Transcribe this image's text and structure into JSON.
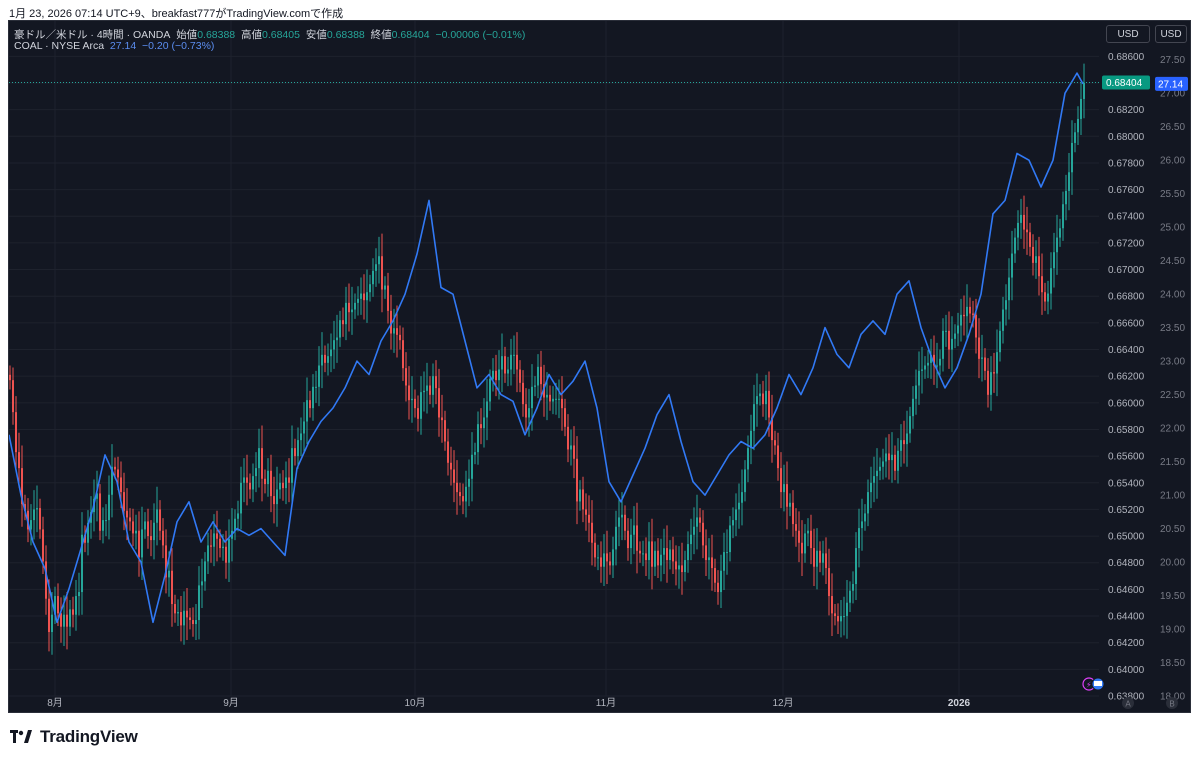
{
  "header": {
    "caption": "1月 23, 2026 07:14 UTC+9、breakfast777がTradingView.comで作成"
  },
  "legend": {
    "main": {
      "symbol": "豪ドル／米ドル · 4時間 · OANDA",
      "open_label": "始値",
      "open": "0.68388",
      "high_label": "高値",
      "high": "0.68405",
      "low_label": "安値",
      "low": "0.68388",
      "close_label": "終値",
      "close": "0.68404",
      "change": "−0.00006 (−0.01%)"
    },
    "compare": {
      "symbol": "COAL · NYSE Arca",
      "last": "27.14",
      "change": "−0.20 (−0.73%)"
    }
  },
  "scales": {
    "left_currency": "USD",
    "right_currency": "USD",
    "label_a": "A",
    "label_b": "B"
  },
  "footer": {
    "brand": "TradingView"
  },
  "colors": {
    "up": "#26a69a",
    "down": "#ef5350",
    "compare": "#3179f5",
    "bg": "#131722",
    "grid": "#1e222d",
    "axis_text": "#b2b5be"
  },
  "chart_data": {
    "type": "line",
    "x_axis": {
      "ticks": [
        "8月",
        "9月",
        "10月",
        "11月",
        "12月",
        "2026"
      ],
      "bold": [
        "2026"
      ]
    },
    "y_axis_left": {
      "ticks": [
        "0.68600",
        "0.68400",
        "0.68200",
        "0.68000",
        "0.67800",
        "0.67600",
        "0.67400",
        "0.67200",
        "0.67000",
        "0.66800",
        "0.66600",
        "0.66400",
        "0.66200",
        "0.66000",
        "0.65800",
        "0.65600",
        "0.65400",
        "0.65200",
        "0.65000",
        "0.64800",
        "0.64600",
        "0.64400",
        "0.64200",
        "0.64000",
        "0.63800"
      ],
      "range": [
        0.638,
        0.687
      ]
    },
    "y_axis_right": {
      "ticks": [
        "27.50",
        "27.00",
        "26.50",
        "26.00",
        "25.50",
        "25.00",
        "24.50",
        "24.00",
        "23.50",
        "23.00",
        "22.50",
        "22.00",
        "21.50",
        "21.00",
        "20.50",
        "20.00",
        "19.50",
        "19.00",
        "18.50",
        "18.00"
      ],
      "range": [
        18.0,
        27.75
      ]
    },
    "last_labels": {
      "main": "0.68404",
      "compare": "27.14"
    },
    "series": [
      {
        "name": "豪ドル／米ドル",
        "kind": "candlestick",
        "scale": "left",
        "x": [
          0,
          3,
          6,
          9,
          12,
          15,
          18,
          21,
          24,
          27,
          30,
          33,
          36,
          39,
          42,
          45,
          48,
          51,
          54,
          57,
          60,
          63,
          66,
          69,
          72,
          75,
          78,
          81,
          84,
          87,
          90,
          93,
          96,
          99,
          102,
          105,
          108,
          111,
          114,
          117,
          120,
          123,
          126,
          129,
          132,
          135,
          138,
          141,
          144,
          147,
          150,
          153,
          156,
          159,
          162,
          165,
          168,
          171,
          174,
          177,
          180,
          183,
          186,
          189,
          192,
          195,
          198,
          201,
          204,
          207,
          210,
          213,
          216,
          219,
          222,
          225,
          228,
          231,
          234,
          237,
          240,
          243,
          246,
          249,
          252,
          255,
          258,
          261,
          264,
          267,
          270,
          273,
          276,
          279,
          282,
          285,
          288,
          291,
          294,
          297,
          300,
          303,
          306,
          309,
          312,
          315,
          318,
          321,
          324,
          327,
          330,
          333,
          336,
          339,
          342,
          345,
          348,
          351,
          354,
          357,
          360,
          363,
          366,
          369,
          372,
          375,
          378,
          381,
          384,
          387,
          390,
          393,
          396,
          399,
          402,
          405,
          408,
          411,
          414,
          417,
          420,
          423,
          426,
          429,
          432,
          435,
          438,
          441,
          444,
          447,
          450,
          453,
          456,
          459,
          462,
          465,
          468,
          471,
          474,
          477,
          480,
          483,
          486,
          489,
          492,
          495,
          498,
          501,
          504,
          507,
          510,
          513,
          516,
          519,
          522,
          525,
          528,
          531,
          534,
          537,
          540,
          543,
          546,
          549,
          552,
          555,
          558,
          561,
          564,
          567,
          570,
          573,
          576,
          579,
          582,
          585,
          588,
          591,
          594,
          597,
          600,
          603,
          606,
          609,
          612,
          615,
          618,
          621,
          624,
          627,
          630,
          633,
          636,
          639,
          642,
          645,
          648,
          651,
          654,
          657,
          660,
          663,
          666,
          669,
          672,
          675,
          678,
          681,
          684,
          687,
          690,
          693,
          696,
          699,
          702,
          705,
          708,
          711,
          714,
          717,
          720,
          723,
          726,
          729,
          732,
          735,
          738,
          741,
          744,
          747,
          750,
          753,
          756,
          759,
          762,
          765,
          768,
          771,
          774,
          777,
          780,
          783,
          786,
          789,
          792,
          795,
          798,
          801,
          804,
          807,
          810,
          813,
          816,
          819,
          822,
          825,
          828,
          831,
          834,
          837,
          840,
          843,
          846,
          849,
          852,
          855,
          858,
          861,
          864,
          867,
          870,
          873,
          876,
          879,
          882,
          885,
          888,
          891,
          894,
          897,
          900,
          903,
          906,
          909,
          912,
          915,
          918,
          921,
          924,
          927,
          930,
          933,
          936,
          939,
          942,
          945,
          948,
          951,
          954,
          957,
          960,
          963,
          966,
          969,
          972,
          975,
          978,
          981,
          984,
          987,
          990,
          993,
          996,
          999,
          1002,
          1005,
          1008,
          1011,
          1014,
          1017,
          1020,
          1023,
          1026,
          1029,
          1032,
          1035,
          1038,
          1041,
          1044,
          1047,
          1050,
          1053,
          1056,
          1059,
          1062,
          1065,
          1068,
          1071,
          1074
        ],
        "close": [
          0.6617,
          0.6593,
          0.6563,
          0.6551,
          0.6524,
          0.6519,
          0.6505,
          0.6512,
          0.652,
          0.6521,
          0.6505,
          0.6481,
          0.6453,
          0.6428,
          0.6441,
          0.6455,
          0.6442,
          0.6432,
          0.6441,
          0.6432,
          0.6445,
          0.6441,
          0.6455,
          0.6458,
          0.6501,
          0.6495,
          0.651,
          0.6518,
          0.6528,
          0.6532,
          0.6504,
          0.6512,
          0.6512,
          0.6531,
          0.6552,
          0.655,
          0.6544,
          0.6533,
          0.6519,
          0.6514,
          0.6511,
          0.6502,
          0.6504,
          0.6484,
          0.6505,
          0.6511,
          0.65,
          0.6497,
          0.651,
          0.652,
          0.6504,
          0.6493,
          0.6469,
          0.6474,
          0.6449,
          0.6442,
          0.6443,
          0.6433,
          0.6444,
          0.6439,
          0.6437,
          0.6434,
          0.6437,
          0.6463,
          0.6466,
          0.6481,
          0.6493,
          0.6492,
          0.6502,
          0.6498,
          0.6491,
          0.6492,
          0.648,
          0.6498,
          0.6504,
          0.6513,
          0.6517,
          0.654,
          0.6544,
          0.654,
          0.6535,
          0.6545,
          0.6551,
          0.6566,
          0.6543,
          0.6539,
          0.6549,
          0.653,
          0.6524,
          0.6535,
          0.654,
          0.6536,
          0.6544,
          0.654,
          0.6566,
          0.656,
          0.6572,
          0.6577,
          0.6586,
          0.6602,
          0.6596,
          0.6612,
          0.6612,
          0.6628,
          0.6636,
          0.663,
          0.6635,
          0.664,
          0.6647,
          0.6649,
          0.6662,
          0.6659,
          0.6675,
          0.6668,
          0.667,
          0.6675,
          0.6678,
          0.6682,
          0.6677,
          0.6683,
          0.6689,
          0.6699,
          0.6704,
          0.671,
          0.6685,
          0.6688,
          0.6669,
          0.6652,
          0.6656,
          0.6651,
          0.6647,
          0.6626,
          0.6613,
          0.6602,
          0.6603,
          0.6596,
          0.6588,
          0.6608,
          0.6609,
          0.6613,
          0.6606,
          0.662,
          0.6611,
          0.6589,
          0.6587,
          0.6571,
          0.6555,
          0.655,
          0.654,
          0.6533,
          0.653,
          0.6526,
          0.6537,
          0.6543,
          0.6561,
          0.6563,
          0.6584,
          0.6581,
          0.6589,
          0.6601,
          0.6618,
          0.6624,
          0.6617,
          0.6625,
          0.6635,
          0.6622,
          0.6625,
          0.6636,
          0.6636,
          0.6625,
          0.6615,
          0.6599,
          0.6589,
          0.6596,
          0.6612,
          0.6613,
          0.6627,
          0.6614,
          0.6604,
          0.6606,
          0.6601,
          0.6603,
          0.6603,
          0.6603,
          0.6596,
          0.6582,
          0.6565,
          0.6568,
          0.6558,
          0.6526,
          0.6535,
          0.652,
          0.6516,
          0.651,
          0.6495,
          0.6484,
          0.6484,
          0.6477,
          0.6487,
          0.6481,
          0.6478,
          0.649,
          0.6507,
          0.6514,
          0.6516,
          0.6504,
          0.6491,
          0.6501,
          0.6508,
          0.6489,
          0.6487,
          0.6487,
          0.6482,
          0.6496,
          0.6477,
          0.6489,
          0.6478,
          0.6486,
          0.6491,
          0.6482,
          0.649,
          0.6481,
          0.6475,
          0.6478,
          0.6473,
          0.6482,
          0.6494,
          0.6501,
          0.6507,
          0.6514,
          0.651,
          0.6493,
          0.6482,
          0.6484,
          0.6476,
          0.6465,
          0.6458,
          0.6474,
          0.6488,
          0.6488,
          0.6508,
          0.6512,
          0.652,
          0.6525,
          0.6533,
          0.655,
          0.6566,
          0.6579,
          0.6599,
          0.6605,
          0.6607,
          0.6599,
          0.6609,
          0.6589,
          0.6572,
          0.6568,
          0.6551,
          0.6533,
          0.6539,
          0.6522,
          0.6525,
          0.6509,
          0.6504,
          0.6495,
          0.6487,
          0.6502,
          0.6504,
          0.6491,
          0.6477,
          0.6489,
          0.648,
          0.6487,
          0.6476,
          0.6455,
          0.6442,
          0.644,
          0.6436,
          0.644,
          0.644,
          0.645,
          0.6459,
          0.6464,
          0.6491,
          0.6506,
          0.6511,
          0.6517,
          0.6533,
          0.654,
          0.6545,
          0.6549,
          0.6552,
          0.6556,
          0.6562,
          0.6557,
          0.6561,
          0.6549,
          0.6564,
          0.6572,
          0.6569,
          0.6577,
          0.659,
          0.6603,
          0.6613,
          0.6624,
          0.6625,
          0.6628,
          0.663,
          0.6636,
          0.6628,
          0.6628,
          0.6633,
          0.6654,
          0.6654,
          0.664,
          0.6648,
          0.6652,
          0.6658,
          0.6666,
          0.6665,
          0.6672,
          0.6667,
          0.6666,
          0.6649,
          0.6633,
          0.6634,
          0.6624,
          0.6606,
          0.6623,
          0.6622,
          0.6638,
          0.6654,
          0.667,
          0.6677,
          0.6694,
          0.6712,
          0.6724,
          0.6735,
          0.6741,
          0.673,
          0.6728,
          0.6717,
          0.6705,
          0.671,
          0.6695,
          0.6683,
          0.6676,
          0.6682,
          0.6701,
          0.6713,
          0.6724,
          0.6731,
          0.6749,
          0.6759,
          0.6773,
          0.6795,
          0.6803,
          0.6813,
          0.6828,
          0.684
        ]
      },
      {
        "name": "COAL",
        "kind": "line",
        "scale": "right",
        "x": [
          0,
          12,
          24,
          36,
          48,
          60,
          72,
          84,
          96,
          108,
          120,
          132,
          144,
          156,
          168,
          180,
          192,
          204,
          216,
          228,
          240,
          252,
          264,
          276,
          288,
          300,
          312,
          324,
          336,
          348,
          360,
          372,
          384,
          396,
          408,
          420,
          432,
          444,
          456,
          468,
          480,
          492,
          504,
          516,
          528,
          540,
          552,
          564,
          576,
          588,
          600,
          612,
          624,
          636,
          648,
          660,
          672,
          684,
          696,
          708,
          720,
          732,
          744,
          756,
          768,
          780,
          792,
          804,
          816,
          828,
          840,
          852,
          864,
          876,
          888,
          900,
          912,
          924,
          936,
          948,
          960,
          972,
          984,
          996,
          1008,
          1020,
          1032,
          1044,
          1056,
          1068,
          1074
        ],
        "values": [
          21.9,
          21.0,
          20.3,
          19.9,
          19.1,
          19.6,
          20.2,
          20.8,
          21.6,
          21.2,
          20.3,
          20.0,
          19.1,
          19.8,
          20.6,
          20.9,
          20.3,
          20.6,
          20.3,
          20.5,
          20.4,
          20.5,
          20.3,
          20.1,
          21.4,
          21.8,
          22.1,
          22.3,
          22.6,
          23.0,
          22.8,
          23.3,
          23.6,
          24.0,
          24.6,
          25.4,
          24.1,
          24.0,
          23.3,
          22.6,
          22.8,
          22.5,
          22.4,
          21.9,
          22.3,
          22.8,
          22.5,
          22.7,
          23.0,
          22.3,
          21.2,
          20.9,
          21.3,
          21.7,
          22.2,
          22.5,
          21.8,
          21.2,
          21.0,
          21.3,
          21.6,
          21.8,
          21.7,
          21.9,
          22.3,
          22.8,
          22.5,
          22.9,
          23.5,
          23.1,
          22.9,
          23.4,
          23.6,
          23.4,
          24.0,
          24.2,
          23.5,
          23.0,
          22.6,
          22.9,
          23.4,
          24.0,
          25.2,
          25.4,
          26.1,
          26.0,
          25.6,
          26.0,
          27.0,
          27.3,
          27.14
        ]
      }
    ]
  }
}
